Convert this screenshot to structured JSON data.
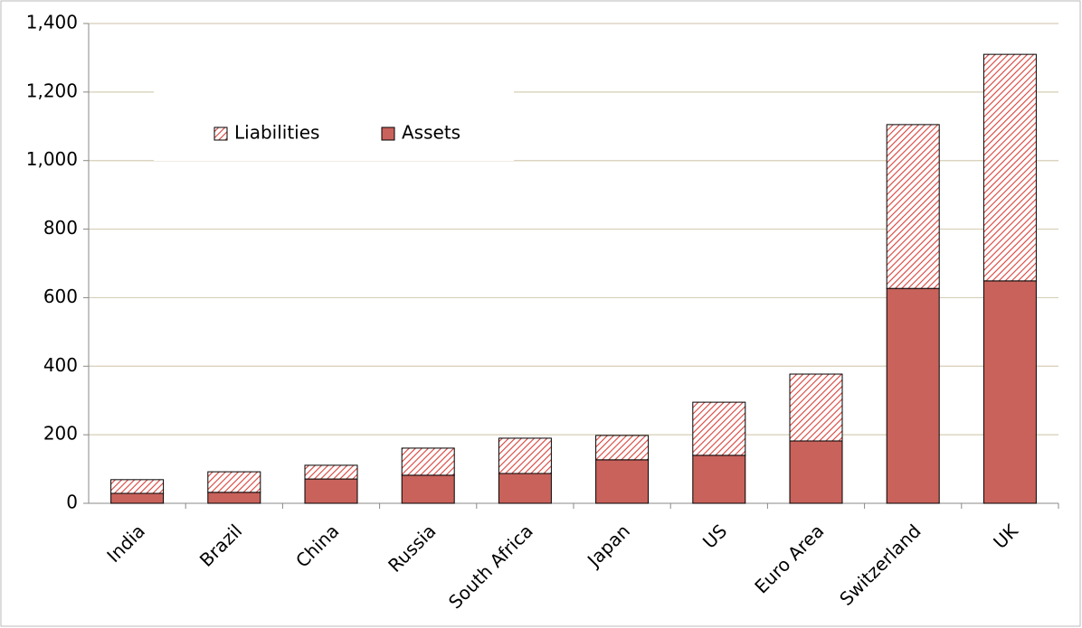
{
  "chart_data": {
    "type": "stacked_bar",
    "categories": [
      "India",
      "Brazil",
      "China",
      "Russia",
      "South Africa",
      "Japan",
      "US",
      "Euro Area",
      "Switzerland",
      "UK"
    ],
    "series": [
      {
        "name": "Assets",
        "color": "#c8625b",
        "fill": "solid",
        "values": [
          29,
          32,
          71,
          82,
          87,
          127,
          140,
          182,
          627,
          649
        ]
      },
      {
        "name": "Liabilities",
        "color": "#d9413a",
        "fill": "hatch",
        "values": [
          40,
          60,
          40,
          79,
          103,
          71,
          155,
          195,
          478,
          661
        ]
      }
    ],
    "ylim": [
      0,
      1400
    ],
    "yticks": [
      0,
      200,
      400,
      600,
      800,
      {
        "value": 1000,
        "label": "1,000"
      },
      {
        "value": 1200,
        "label": "1,200"
      },
      {
        "value": 1400,
        "label": "1,400"
      }
    ],
    "grid": true,
    "grid_color": "#d6ceb6",
    "legend": "upper-left"
  }
}
